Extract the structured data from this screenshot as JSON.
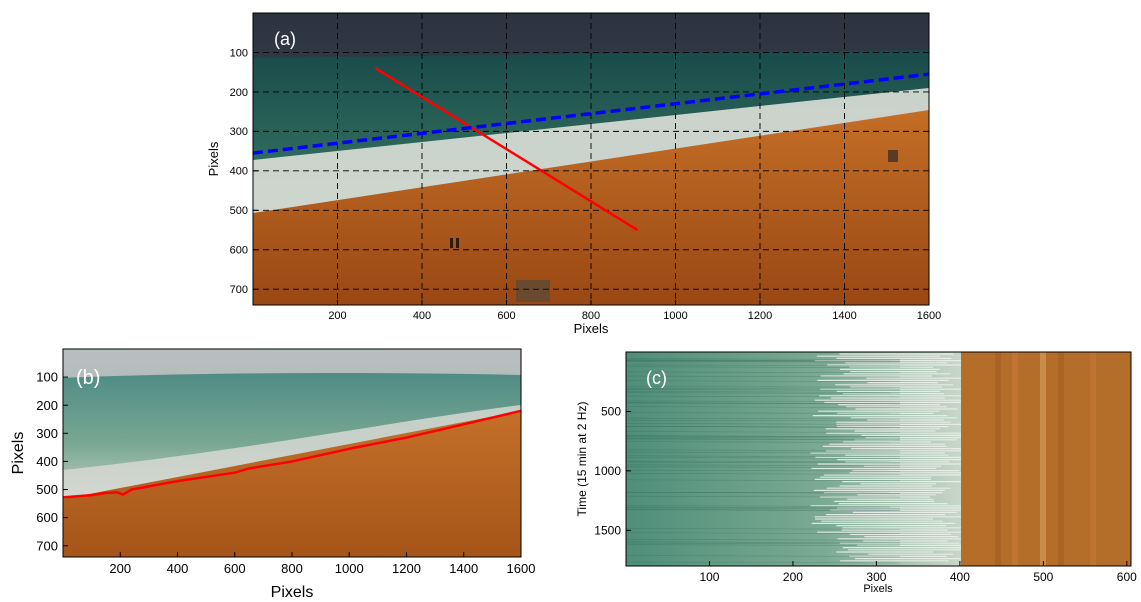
{
  "figure": {
    "panels": [
      {
        "id": "a",
        "label": "(a)",
        "xlabel": "Pixels",
        "ylabel": "Pixels",
        "xticks": [
          200,
          400,
          600,
          800,
          1000,
          1200,
          1400,
          1600
        ],
        "yticks": [
          100,
          200,
          300,
          400,
          500,
          600,
          700
        ],
        "xlim": [
          0,
          1600
        ],
        "ylim": [
          0,
          740
        ],
        "y_reversed": true,
        "grid": true,
        "grid_style": "dashed black",
        "image_type": "oblique beach photograph",
        "overlays": [
          {
            "name": "transect-line",
            "color": "#ff0000",
            "style": "solid",
            "points": [
              [
                290,
                140
              ],
              [
                910,
                550
              ]
            ]
          },
          {
            "name": "shoreline-trend-line",
            "color": "#0000ff",
            "style": "dashed",
            "points": [
              [
                0,
                355
              ],
              [
                1600,
                155
              ]
            ]
          }
        ]
      },
      {
        "id": "b",
        "label": "(b)",
        "xlabel": "Pixels",
        "ylabel": "Pixels",
        "xticks": [
          200,
          400,
          600,
          800,
          1000,
          1200,
          1400,
          1600
        ],
        "yticks": [
          100,
          200,
          300,
          400,
          500,
          600,
          700
        ],
        "xlim": [
          0,
          1600
        ],
        "ylim": [
          0,
          740
        ],
        "y_reversed": true,
        "grid": false,
        "image_type": "time-averaged beach image",
        "overlays": [
          {
            "name": "detected-shoreline",
            "color": "#ff0000",
            "style": "solid",
            "points": [
              [
                0,
                528
              ],
              [
                100,
                520
              ],
              [
                150,
                512
              ],
              [
                190,
                510
              ],
              [
                210,
                518
              ],
              [
                240,
                500
              ],
              [
                400,
                470
              ],
              [
                600,
                440
              ],
              [
                650,
                425
              ],
              [
                800,
                400
              ],
              [
                1000,
                355
              ],
              [
                1200,
                315
              ],
              [
                1400,
                268
              ],
              [
                1600,
                220
              ]
            ]
          }
        ]
      },
      {
        "id": "c",
        "label": "(c)",
        "xlabel": "Pixels",
        "ylabel": "Time (15 min at 2 Hz)",
        "xticks": [
          100,
          200,
          300,
          400,
          500,
          600
        ],
        "yticks": [
          500,
          1000,
          1500
        ],
        "xlim": [
          0,
          605
        ],
        "ylim": [
          0,
          1800
        ],
        "y_reversed": true,
        "grid": false,
        "image_type": "timestack image"
      }
    ]
  },
  "colors": {
    "sky": "#3a4452",
    "sea_deep": "#1f5a56",
    "sea_shallow": "#4f8a78",
    "foam": "#e8ece6",
    "sand": "#b8611c",
    "sand_dark": "#a24f14",
    "transect": "#ff0000",
    "trend_line": "#0000ff",
    "timestack_water": "#5e9a86",
    "timestack_sand": "#b56d2a"
  }
}
